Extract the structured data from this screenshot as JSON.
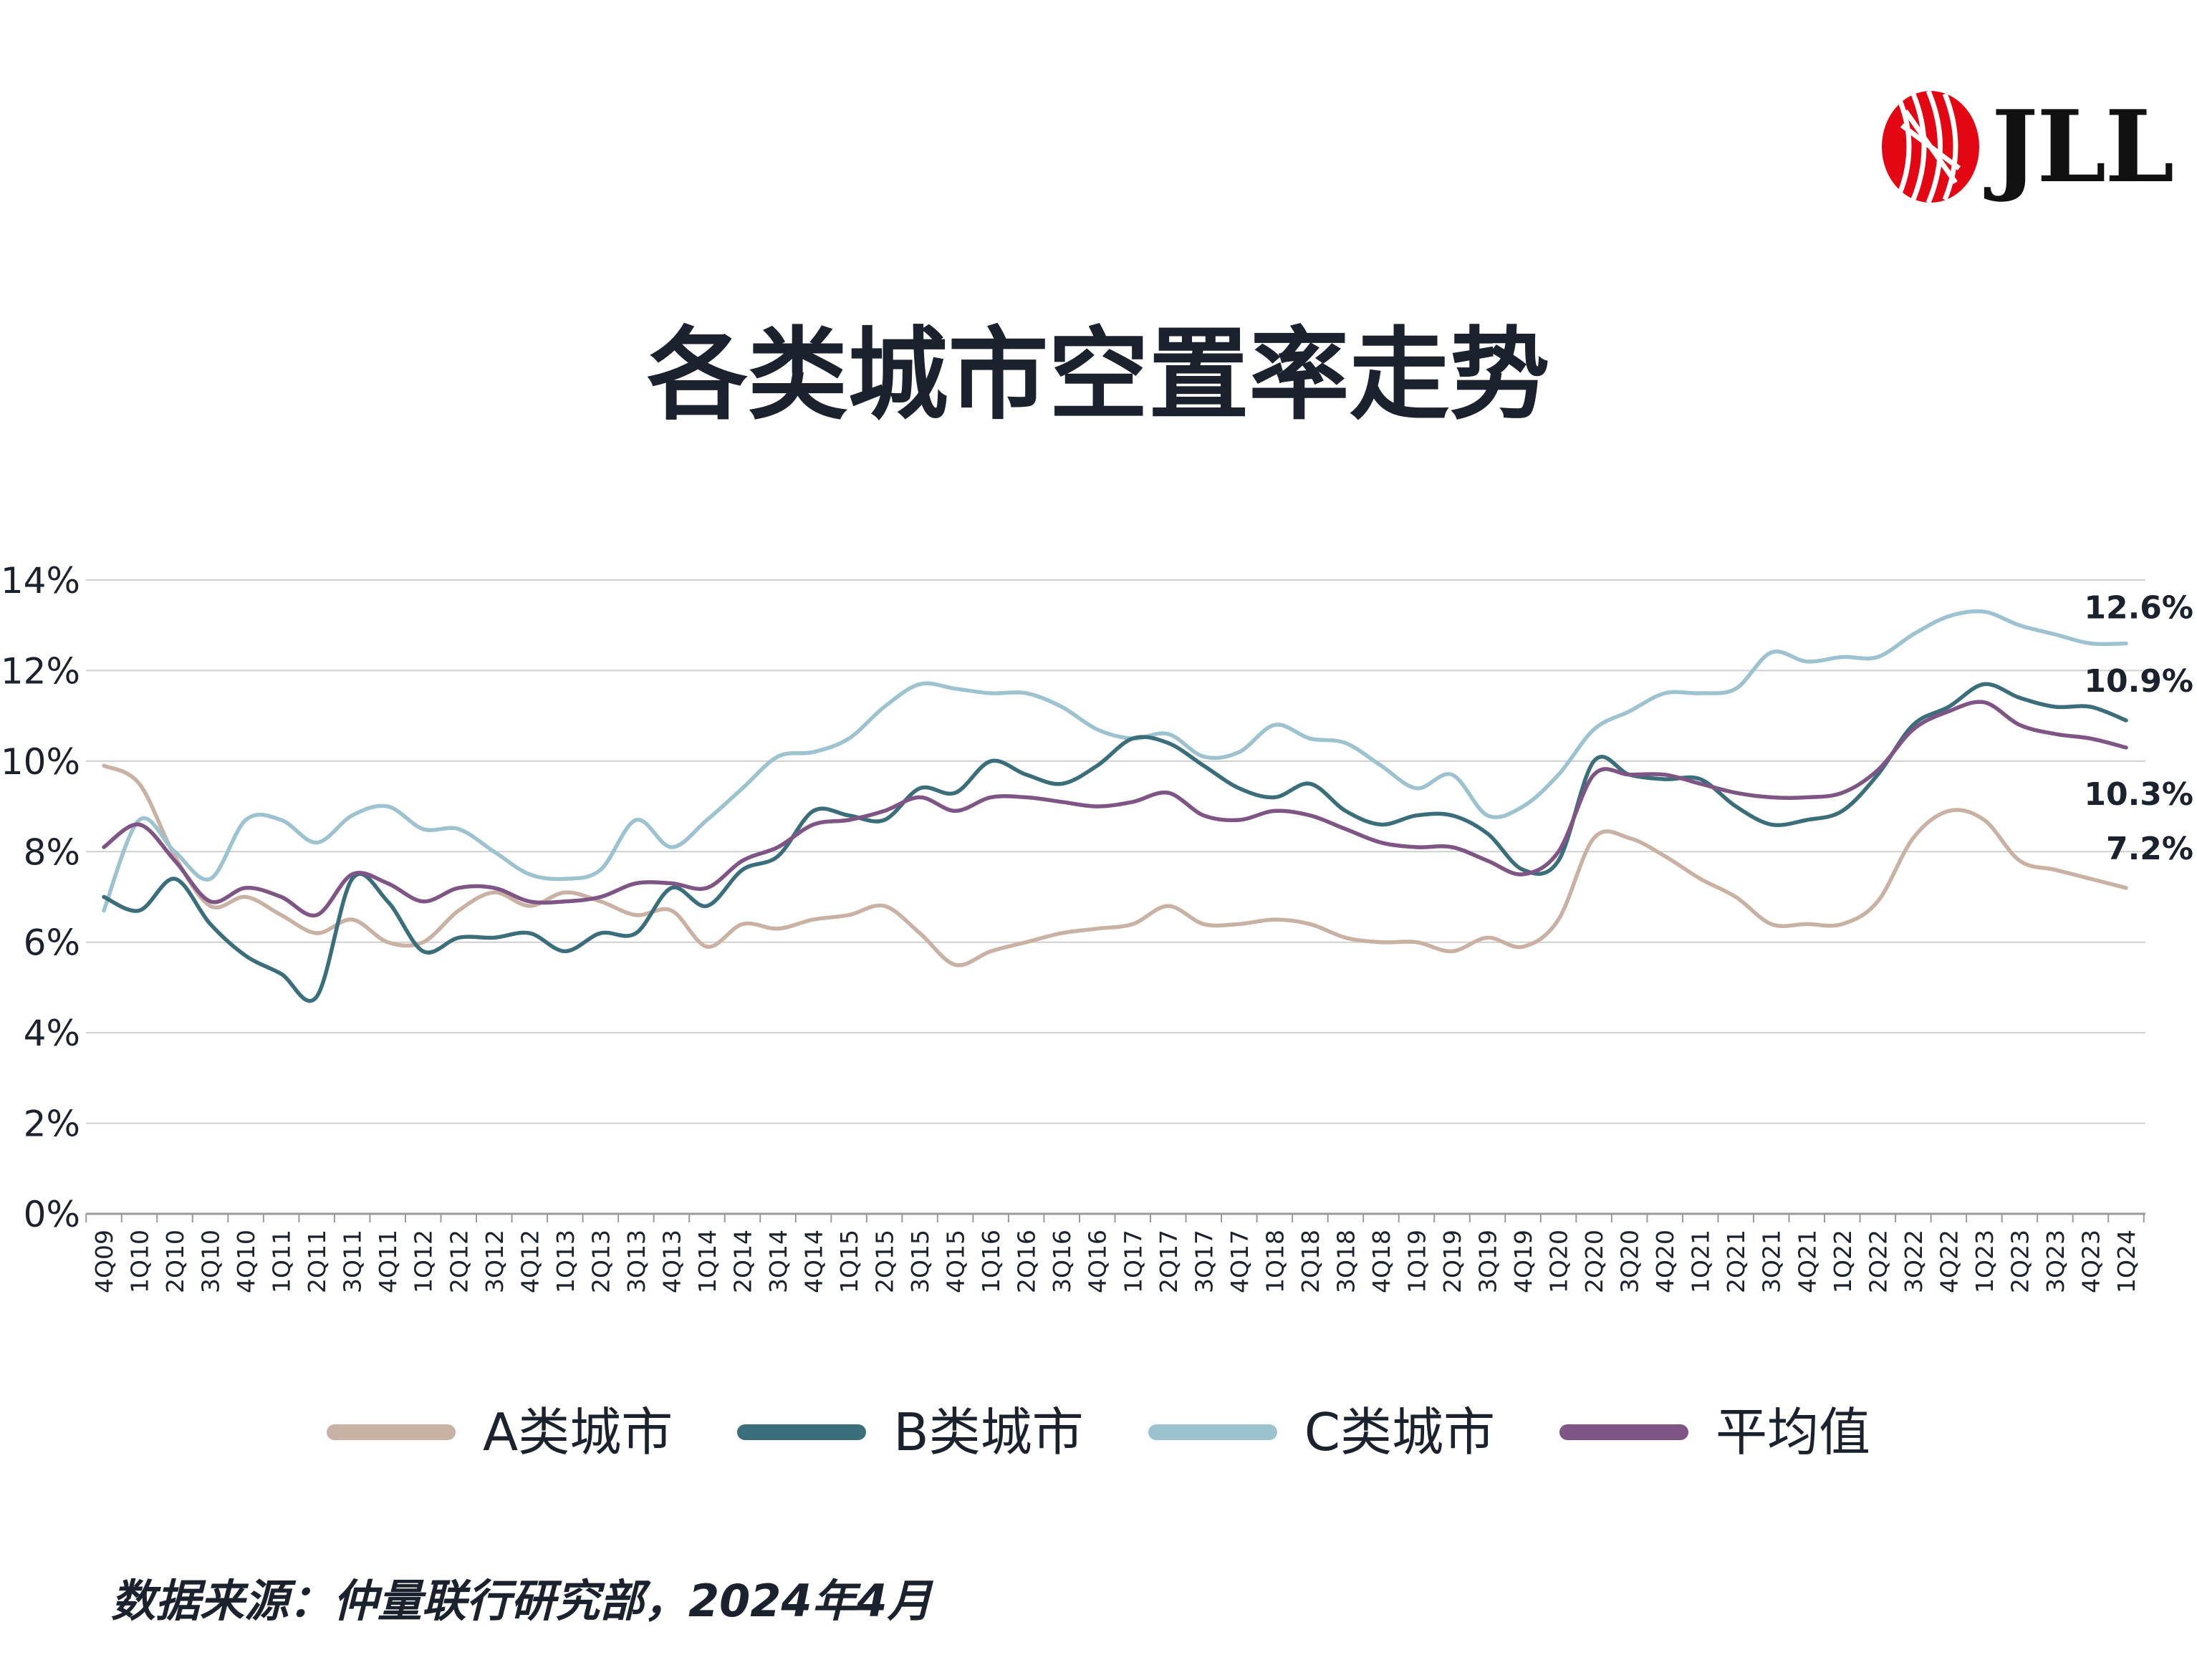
{
  "brand": {
    "name": "JLL",
    "logo_icon": "jll-logo-icon",
    "logo_color": "#e30613"
  },
  "chart_data": {
    "type": "line",
    "title": "各类城市空置率走势",
    "xlabel": "",
    "ylabel": "",
    "ylim": [
      0,
      14
    ],
    "yticks": [
      "0%",
      "2%",
      "4%",
      "6%",
      "8%",
      "10%",
      "12%",
      "14%"
    ],
    "grid": true,
    "legend_position": "bottom",
    "categories": [
      "4Q09",
      "1Q10",
      "2Q10",
      "3Q10",
      "4Q10",
      "1Q11",
      "2Q11",
      "3Q11",
      "4Q11",
      "1Q12",
      "2Q12",
      "3Q12",
      "4Q12",
      "1Q13",
      "2Q13",
      "3Q13",
      "4Q13",
      "1Q14",
      "2Q14",
      "3Q14",
      "4Q14",
      "1Q15",
      "2Q15",
      "3Q15",
      "4Q15",
      "1Q16",
      "2Q16",
      "3Q16",
      "4Q16",
      "1Q17",
      "2Q17",
      "3Q17",
      "4Q17",
      "1Q18",
      "2Q18",
      "3Q18",
      "4Q18",
      "1Q19",
      "2Q19",
      "3Q19",
      "4Q19",
      "1Q20",
      "2Q20",
      "3Q20",
      "4Q20",
      "1Q21",
      "2Q21",
      "3Q21",
      "4Q21",
      "1Q22",
      "2Q22",
      "3Q22",
      "4Q22",
      "1Q23",
      "2Q23",
      "3Q23",
      "4Q23",
      "1Q24"
    ],
    "series": [
      {
        "name": "A类城市",
        "color": "#c9b2a4",
        "end_label": "7.2%",
        "values": [
          9.9,
          9.5,
          7.9,
          6.8,
          7.0,
          6.6,
          6.2,
          6.5,
          6.0,
          6.0,
          6.7,
          7.1,
          6.8,
          7.1,
          6.9,
          6.6,
          6.7,
          5.9,
          6.4,
          6.3,
          6.5,
          6.6,
          6.8,
          6.2,
          5.5,
          5.8,
          6.0,
          6.2,
          6.3,
          6.4,
          6.8,
          6.4,
          6.4,
          6.5,
          6.4,
          6.1,
          6.0,
          6.0,
          5.8,
          6.1,
          5.9,
          6.5,
          8.3,
          8.3,
          7.9,
          7.4,
          7.0,
          6.4,
          6.4,
          6.4,
          6.9,
          8.3,
          8.9,
          8.7,
          7.8,
          7.6,
          7.4,
          7.2
        ]
      },
      {
        "name": "B类城市",
        "color": "#3b6e7b",
        "end_label": "10.9%",
        "values": [
          7.0,
          6.7,
          7.4,
          6.4,
          5.7,
          5.3,
          4.8,
          7.4,
          6.9,
          5.8,
          6.1,
          6.1,
          6.2,
          5.8,
          6.2,
          6.2,
          7.2,
          6.8,
          7.6,
          7.9,
          8.9,
          8.8,
          8.7,
          9.4,
          9.3,
          10.0,
          9.7,
          9.5,
          9.9,
          10.5,
          10.4,
          9.9,
          9.4,
          9.2,
          9.5,
          8.9,
          8.6,
          8.8,
          8.8,
          8.4,
          7.6,
          7.8,
          10.0,
          9.7,
          9.6,
          9.6,
          9.0,
          8.6,
          8.7,
          8.9,
          9.7,
          10.8,
          11.2,
          11.7,
          11.4,
          11.2,
          11.2,
          10.9
        ]
      },
      {
        "name": "C类城市",
        "color": "#9cc3cf",
        "end_label": "12.6%",
        "values": [
          6.7,
          8.7,
          8.0,
          7.4,
          8.7,
          8.7,
          8.2,
          8.8,
          9.0,
          8.5,
          8.5,
          8.0,
          7.5,
          7.4,
          7.6,
          8.7,
          8.1,
          8.7,
          9.4,
          10.1,
          10.2,
          10.5,
          11.2,
          11.7,
          11.6,
          11.5,
          11.5,
          11.2,
          10.7,
          10.5,
          10.6,
          10.1,
          10.2,
          10.8,
          10.5,
          10.4,
          9.9,
          9.4,
          9.7,
          8.8,
          9.0,
          9.7,
          10.7,
          11.1,
          11.5,
          11.5,
          11.6,
          12.4,
          12.2,
          12.3,
          12.3,
          12.8,
          13.2,
          13.3,
          13.0,
          12.8,
          12.6,
          12.6
        ]
      },
      {
        "name": "平均值",
        "color": "#7e5584",
        "end_label": "10.3%",
        "values": [
          8.1,
          8.6,
          7.8,
          6.9,
          7.2,
          7.0,
          6.6,
          7.5,
          7.3,
          6.9,
          7.2,
          7.2,
          6.9,
          6.9,
          7.0,
          7.3,
          7.3,
          7.2,
          7.8,
          8.1,
          8.6,
          8.7,
          8.9,
          9.2,
          8.9,
          9.2,
          9.2,
          9.1,
          9.0,
          9.1,
          9.3,
          8.8,
          8.7,
          8.9,
          8.8,
          8.5,
          8.2,
          8.1,
          8.1,
          7.8,
          7.5,
          8.0,
          9.7,
          9.7,
          9.7,
          9.5,
          9.3,
          9.2,
          9.2,
          9.3,
          9.8,
          10.7,
          11.1,
          11.3,
          10.8,
          10.6,
          10.5,
          10.3
        ]
      }
    ]
  },
  "source": "数据来源：仲量联行研究部，2024年4月"
}
